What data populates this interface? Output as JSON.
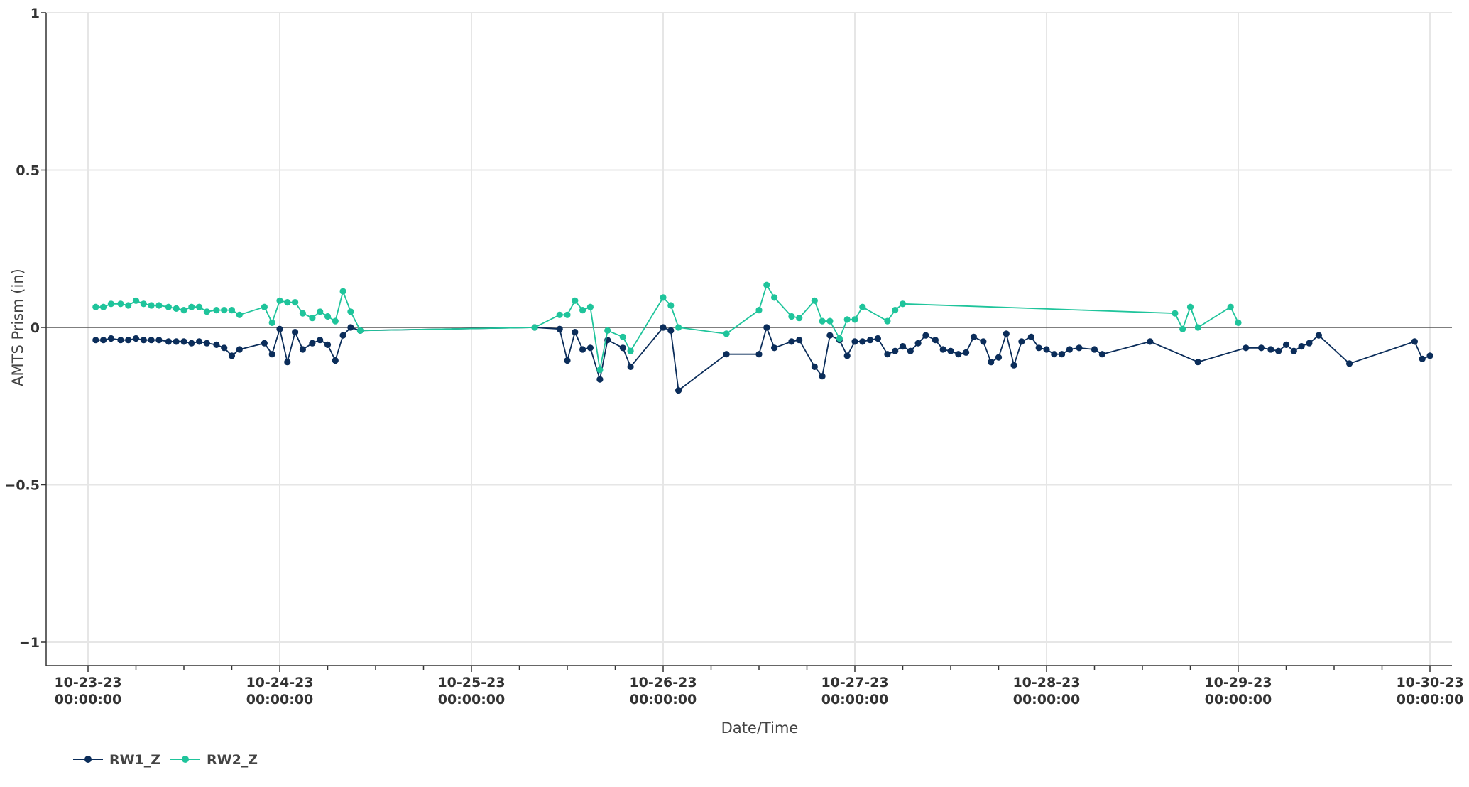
{
  "chart_data": {
    "type": "line",
    "xlabel": "Date/Time",
    "ylabel": "AMTS Prism (in)",
    "ylim": [
      -1,
      1
    ],
    "yticks": [
      1,
      0.5,
      0,
      -0.5,
      -1
    ],
    "ytick_labels": [
      "1",
      "0.5",
      "0",
      "−0.5",
      "−1"
    ],
    "xlim": [
      -0.035,
      7.1
    ],
    "xticks": [
      0,
      1,
      2,
      3,
      4,
      5,
      6,
      7
    ],
    "xtick_labels": [
      [
        "10-23-23",
        "00:00:00"
      ],
      [
        "10-24-23",
        "00:00:00"
      ],
      [
        "10-25-23",
        "00:00:00"
      ],
      [
        "10-26-23",
        "00:00:00"
      ],
      [
        "10-27-23",
        "00:00:00"
      ],
      [
        "10-28-23",
        "00:00:00"
      ],
      [
        "10-29-23",
        "00:00:00"
      ],
      [
        "10-30-23",
        "00:00:00"
      ]
    ],
    "grid": true,
    "zero_line": true,
    "legend_position": "bottom-left",
    "series": [
      {
        "name": "RW1_Z",
        "color": "#0b2d5a",
        "x": [
          0.04,
          0.08,
          0.12,
          0.17,
          0.21,
          0.25,
          0.29,
          0.33,
          0.37,
          0.42,
          0.46,
          0.5,
          0.54,
          0.58,
          0.62,
          0.67,
          0.71,
          0.75,
          0.79,
          0.92,
          0.96,
          1.0,
          1.04,
          1.08,
          1.12,
          1.17,
          1.21,
          1.25,
          1.29,
          1.33,
          1.37,
          1.42,
          2.33,
          2.46,
          2.5,
          2.54,
          2.58,
          2.62,
          2.67,
          2.71,
          2.79,
          2.83,
          3.0,
          3.04,
          3.08,
          3.33,
          3.5,
          3.54,
          3.58,
          3.67,
          3.71,
          3.79,
          3.83,
          3.87,
          3.92,
          3.96,
          4.0,
          4.04,
          4.08,
          4.12,
          4.17,
          4.21,
          4.25,
          4.29,
          4.33,
          4.37,
          4.42,
          4.46,
          4.5,
          4.54,
          4.58,
          4.62,
          4.67,
          4.71,
          4.75,
          4.79,
          4.83,
          4.87,
          4.92,
          4.96,
          5.0,
          5.04,
          5.08,
          5.12,
          5.17,
          5.25,
          5.29,
          5.54,
          5.79,
          6.04,
          6.12,
          6.17,
          6.21,
          6.25,
          6.29,
          6.33,
          6.37,
          6.42,
          6.58,
          6.92,
          6.96,
          7.0
        ],
        "y": [
          -0.04,
          -0.04,
          -0.035,
          -0.04,
          -0.04,
          -0.035,
          -0.04,
          -0.04,
          -0.04,
          -0.045,
          -0.045,
          -0.045,
          -0.05,
          -0.045,
          -0.05,
          -0.055,
          -0.065,
          -0.09,
          -0.07,
          -0.05,
          -0.085,
          -0.005,
          -0.11,
          -0.015,
          -0.07,
          -0.05,
          -0.04,
          -0.055,
          -0.105,
          -0.025,
          0.0,
          -0.01,
          0.0,
          -0.005,
          -0.105,
          -0.015,
          -0.07,
          -0.065,
          -0.165,
          -0.04,
          -0.065,
          -0.125,
          0.0,
          -0.01,
          -0.2,
          -0.085,
          -0.085,
          0.0,
          -0.065,
          -0.045,
          -0.04,
          -0.125,
          -0.155,
          -0.025,
          -0.04,
          -0.09,
          -0.045,
          -0.045,
          -0.04,
          -0.035,
          -0.085,
          -0.075,
          -0.06,
          -0.075,
          -0.05,
          -0.025,
          -0.04,
          -0.07,
          -0.075,
          -0.085,
          -0.08,
          -0.03,
          -0.045,
          -0.11,
          -0.095,
          -0.02,
          -0.12,
          -0.045,
          -0.03,
          -0.065,
          -0.07,
          -0.085,
          -0.085,
          -0.07,
          -0.065,
          -0.07,
          -0.085,
          -0.045,
          -0.11,
          -0.065,
          -0.065,
          -0.07,
          -0.075,
          -0.055,
          -0.075,
          -0.06,
          -0.05,
          -0.025,
          -0.115,
          -0.045,
          -0.1,
          -0.09
        ]
      },
      {
        "name": "RW2_Z",
        "color": "#1fc49b",
        "x": [
          0.04,
          0.08,
          0.12,
          0.17,
          0.21,
          0.25,
          0.29,
          0.33,
          0.37,
          0.42,
          0.46,
          0.5,
          0.54,
          0.58,
          0.62,
          0.67,
          0.71,
          0.75,
          0.79,
          0.92,
          0.96,
          1.0,
          1.04,
          1.08,
          1.12,
          1.17,
          1.21,
          1.25,
          1.29,
          1.33,
          1.37,
          1.42,
          2.33,
          2.46,
          2.5,
          2.54,
          2.58,
          2.62,
          2.67,
          2.71,
          2.79,
          2.83,
          3.0,
          3.04,
          3.08,
          3.33,
          3.5,
          3.54,
          3.58,
          3.67,
          3.71,
          3.79,
          3.83,
          3.87,
          3.92,
          3.96,
          4.0,
          4.04,
          4.17,
          4.21,
          4.25,
          5.67,
          5.71,
          5.75,
          5.79,
          5.96,
          6.0
        ],
        "y": [
          0.065,
          0.065,
          0.075,
          0.075,
          0.07,
          0.085,
          0.075,
          0.07,
          0.07,
          0.065,
          0.06,
          0.055,
          0.065,
          0.065,
          0.05,
          0.055,
          0.055,
          0.055,
          0.04,
          0.065,
          0.015,
          0.085,
          0.08,
          0.08,
          0.045,
          0.03,
          0.05,
          0.035,
          0.02,
          0.115,
          0.05,
          -0.01,
          0.0,
          0.04,
          0.04,
          0.085,
          0.055,
          0.065,
          -0.135,
          -0.01,
          -0.03,
          -0.075,
          0.095,
          0.07,
          0.0,
          -0.02,
          0.055,
          0.135,
          0.095,
          0.035,
          0.03,
          0.085,
          0.02,
          0.02,
          -0.035,
          0.025,
          0.025,
          0.065,
          0.02,
          0.055,
          0.075,
          0.045,
          -0.005,
          0.065,
          0.0,
          0.065,
          0.015
        ]
      }
    ]
  }
}
